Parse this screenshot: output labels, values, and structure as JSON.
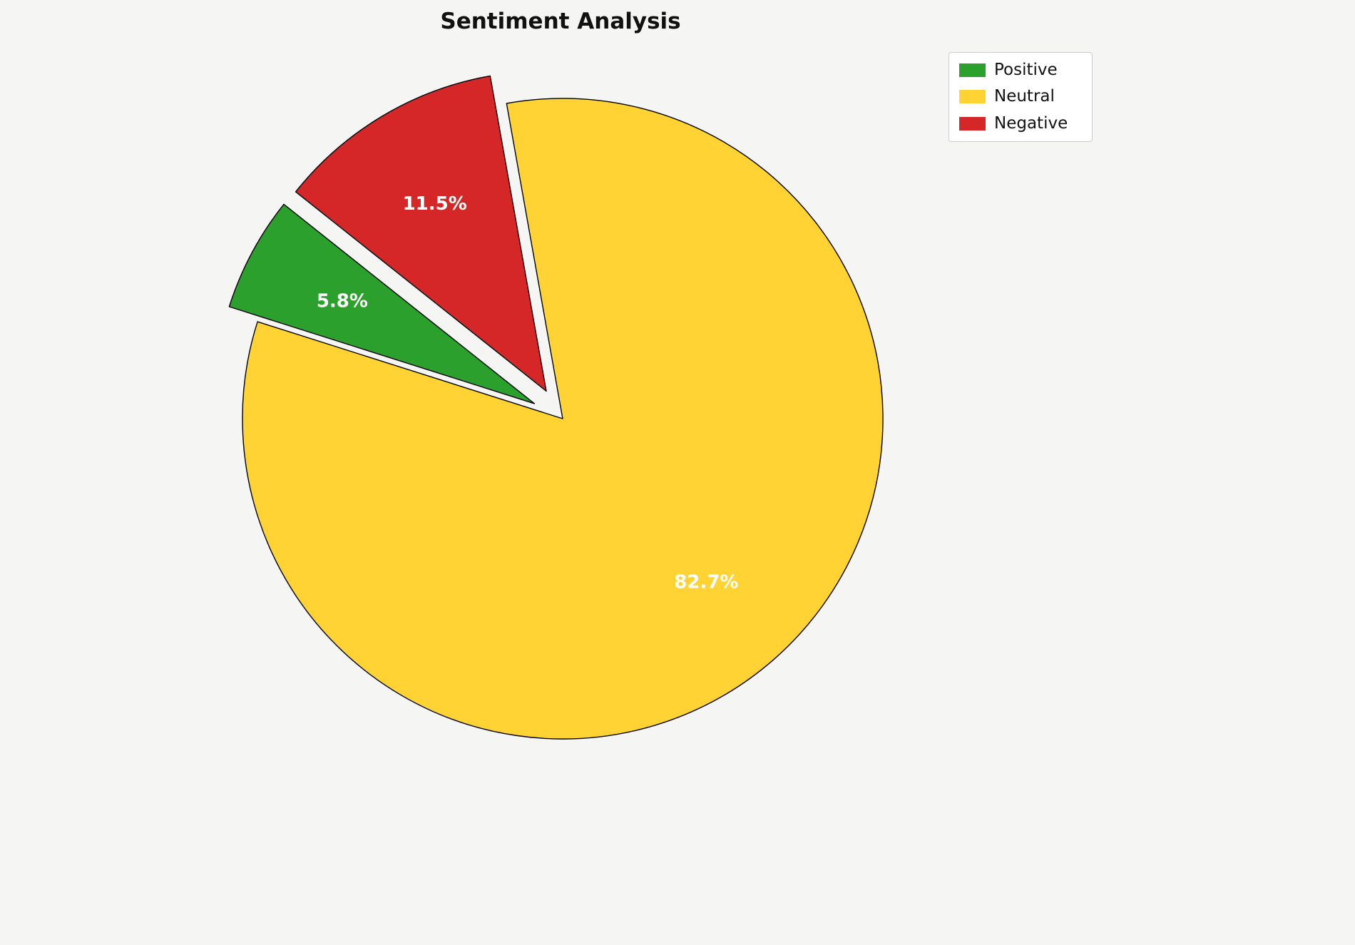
{
  "chart_data": {
    "type": "pie",
    "title": "Sentiment Analysis",
    "background": "#f5f5f3",
    "edge_color": "#000000",
    "label_color": "#ffffff",
    "start_angle_deg": 141.5,
    "counterclockwise": true,
    "pct_distance": 0.68,
    "legend_position": "upper right",
    "slices": [
      {
        "label": "Positive",
        "value": 5.8,
        "display": "5.8%",
        "color": "#2ca02c",
        "explode": 0.1
      },
      {
        "label": "Neutral",
        "value": 82.7,
        "display": "82.7%",
        "color": "#ffd333",
        "explode": 0.0
      },
      {
        "label": "Negative",
        "value": 11.5,
        "display": "11.5%",
        "color": "#d62728",
        "explode": 0.1
      }
    ]
  }
}
